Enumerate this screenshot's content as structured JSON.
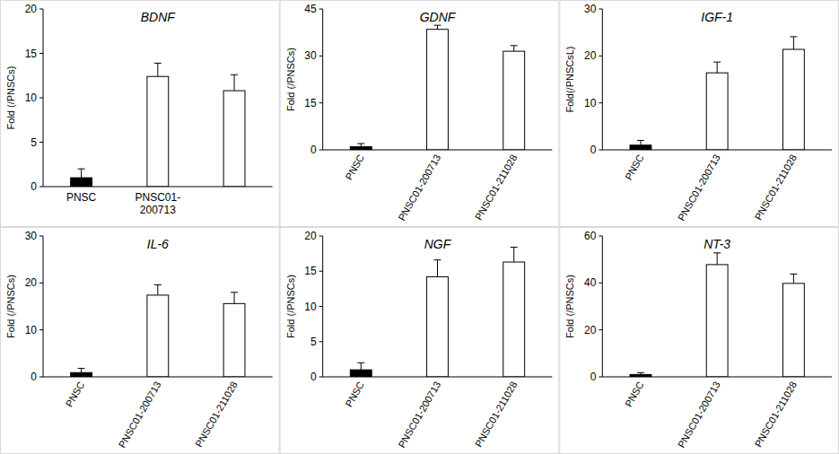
{
  "chart_data": [
    {
      "type": "bar",
      "title": "BDNF",
      "y_label": "Fold (/PNSCs)",
      "categories": [
        "PNSC",
        "PNSC01-200713",
        null
      ],
      "values": [
        1.0,
        12.4,
        10.8
      ],
      "errors": [
        1.0,
        1.5,
        1.8
      ],
      "colors": [
        "#000000",
        "#ffffff",
        "#ffffff"
      ],
      "ylim": [
        0,
        20
      ],
      "yticks": [
        0,
        5,
        10,
        15,
        20
      ]
    },
    {
      "type": "bar",
      "title": "GDNF",
      "y_label": "Fold (/PNSCs)",
      "categories": [
        "PNSC",
        "PNSC01-200713",
        "PNSC01-211028"
      ],
      "values": [
        1.0,
        38.5,
        31.5
      ],
      "errors": [
        1.0,
        1.3,
        1.8
      ],
      "colors": [
        "#000000",
        "#ffffff",
        "#ffffff"
      ],
      "ylim": [
        0,
        45
      ],
      "yticks": [
        0,
        15,
        30,
        45
      ]
    },
    {
      "type": "bar",
      "title": "IGF-1",
      "y_label": "Fold(/PNSCsL)",
      "categories": [
        "PNSC",
        "PNSC01-200713",
        "PNSC01-211028"
      ],
      "values": [
        1.0,
        16.4,
        21.4
      ],
      "errors": [
        1.0,
        2.3,
        2.7
      ],
      "colors": [
        "#000000",
        "#ffffff",
        "#ffffff"
      ],
      "ylim": [
        0,
        30
      ],
      "yticks": [
        0,
        10,
        20,
        30
      ]
    },
    {
      "type": "bar",
      "title": "IL-6",
      "y_label": "Fold (/PNSCs)",
      "categories": [
        "PNSC",
        "PNSC01-200713",
        "PNSC01-211028"
      ],
      "values": [
        0.9,
        17.4,
        15.6
      ],
      "errors": [
        0.9,
        2.2,
        2.4
      ],
      "colors": [
        "#000000",
        "#ffffff",
        "#ffffff"
      ],
      "ylim": [
        0,
        30
      ],
      "yticks": [
        0,
        10,
        20,
        30
      ]
    },
    {
      "type": "bar",
      "title": "NGF",
      "y_label": "Fold (/PNSCs)",
      "categories": [
        "PNSC",
        "PNSC01-200713",
        "PNSC01-211028"
      ],
      "values": [
        1.0,
        14.2,
        16.3
      ],
      "errors": [
        1.0,
        2.4,
        2.1
      ],
      "colors": [
        "#000000",
        "#ffffff",
        "#ffffff"
      ],
      "ylim": [
        0,
        20
      ],
      "yticks": [
        0,
        5,
        10,
        15,
        20
      ]
    },
    {
      "type": "bar",
      "title": "NT-3",
      "y_label": "Fold (/PNSCs)",
      "categories": [
        "PNSC",
        "PNSC01-200713",
        "PNSC01-211028"
      ],
      "values": [
        1.0,
        47.8,
        39.8
      ],
      "errors": [
        0.8,
        5.0,
        4.0
      ],
      "colors": [
        "#000000",
        "#ffffff",
        "#ffffff"
      ],
      "ylim": [
        0,
        60
      ],
      "yticks": [
        0,
        20,
        40,
        60
      ]
    }
  ]
}
